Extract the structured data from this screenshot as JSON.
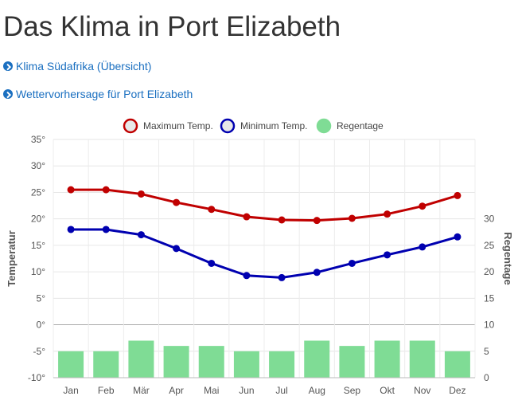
{
  "page": {
    "title": "Das Klima in Port Elizabeth",
    "links": [
      "Klima Südafrika (Übersicht)",
      "Wettervorhersage für Port Elizabeth"
    ]
  },
  "colors": {
    "max": "#c00000",
    "min": "#0000b0",
    "rain": "#7fdc95",
    "link": "#1a6fc0"
  },
  "chart_data": {
    "type": "line",
    "categories": [
      "Jan",
      "Feb",
      "Mär",
      "Apr",
      "Mai",
      "Jun",
      "Jul",
      "Aug",
      "Sep",
      "Okt",
      "Nov",
      "Dez"
    ],
    "series": [
      {
        "name": "Maximum Temp.",
        "type": "line",
        "axis": "left",
        "values": [
          25.5,
          25.5,
          24.7,
          23.1,
          21.8,
          20.4,
          19.8,
          19.7,
          20.1,
          20.9,
          22.4,
          24.4
        ]
      },
      {
        "name": "Minimum Temp.",
        "type": "line",
        "axis": "left",
        "values": [
          18,
          18,
          17,
          14.4,
          11.6,
          9.3,
          8.9,
          9.9,
          11.6,
          13.2,
          14.7,
          16.6
        ]
      },
      {
        "name": "Regentage",
        "type": "bar",
        "axis": "right",
        "values": [
          5,
          5,
          7,
          6,
          6,
          5,
          5,
          7,
          6,
          7,
          7,
          5
        ]
      }
    ],
    "ylabel": "Temperatur",
    "y2label": "Regentage",
    "ylim": [
      -10,
      35
    ],
    "y2lim": [
      0,
      45
    ],
    "yticks": [
      "35°",
      "30°",
      "25°",
      "20°",
      "15°",
      "10°",
      "5°",
      "0°",
      "-5°",
      "-10°"
    ],
    "y2ticks": [
      "30",
      "25",
      "20",
      "15",
      "10",
      "5",
      "0"
    ],
    "grid": true,
    "legend": "top"
  }
}
